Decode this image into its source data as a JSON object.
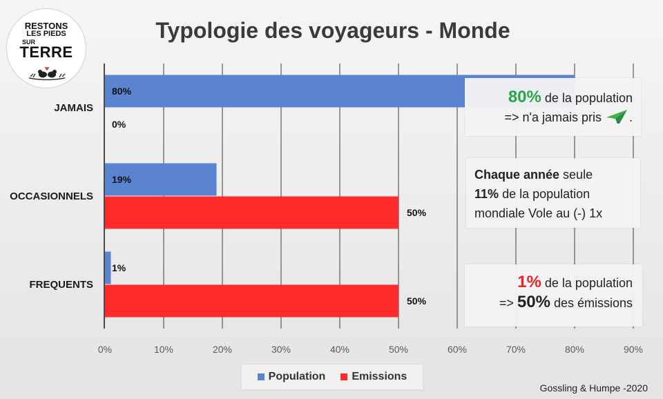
{
  "chart_data": {
    "type": "bar",
    "orientation": "horizontal",
    "title": "Typologie des voyageurs - Monde",
    "categories": [
      "JAMAIS",
      "OCCASIONNELS",
      "FREQUENTS"
    ],
    "series": [
      {
        "name": "Population",
        "values": [
          80,
          19,
          1
        ],
        "labels": [
          "80%",
          "19%",
          "1%"
        ],
        "color": "#5b84d0"
      },
      {
        "name": "Emissions",
        "values": [
          0,
          50,
          50
        ],
        "labels": [
          "0%",
          "50%",
          "50%"
        ],
        "color": "#ff2b2b"
      }
    ],
    "xlim": [
      0,
      90
    ],
    "x_ticks": [
      "0%",
      "10%",
      "20%",
      "30%",
      "40%",
      "50%",
      "60%",
      "70%",
      "80%",
      "90%"
    ],
    "grid": true,
    "legend_position": "bottom"
  },
  "logo": {
    "line1": "RESTONS",
    "line2": "LES PIEDS",
    "line3": "SUR",
    "line4": "TERRE"
  },
  "callouts": {
    "first": {
      "pct": "80%",
      "pct_color": "#2ba24c",
      "text1": "de la population",
      "text2": "=> n'a jamais pris",
      "tail": ".",
      "icon": "paper-plane-icon"
    },
    "second": {
      "bold1": "Chaque année",
      "text1": "seule",
      "bold2": "11%",
      "text2": "de la population",
      "text3": "mondiale Vole au (-) 1x"
    },
    "third": {
      "pct": "1%",
      "pct_color": "#e8232a",
      "text1": "de la population",
      "prefix2": "=>",
      "bold2": "50%",
      "text2": "des émissions"
    }
  },
  "source": "Gossling & Humpe -2020"
}
